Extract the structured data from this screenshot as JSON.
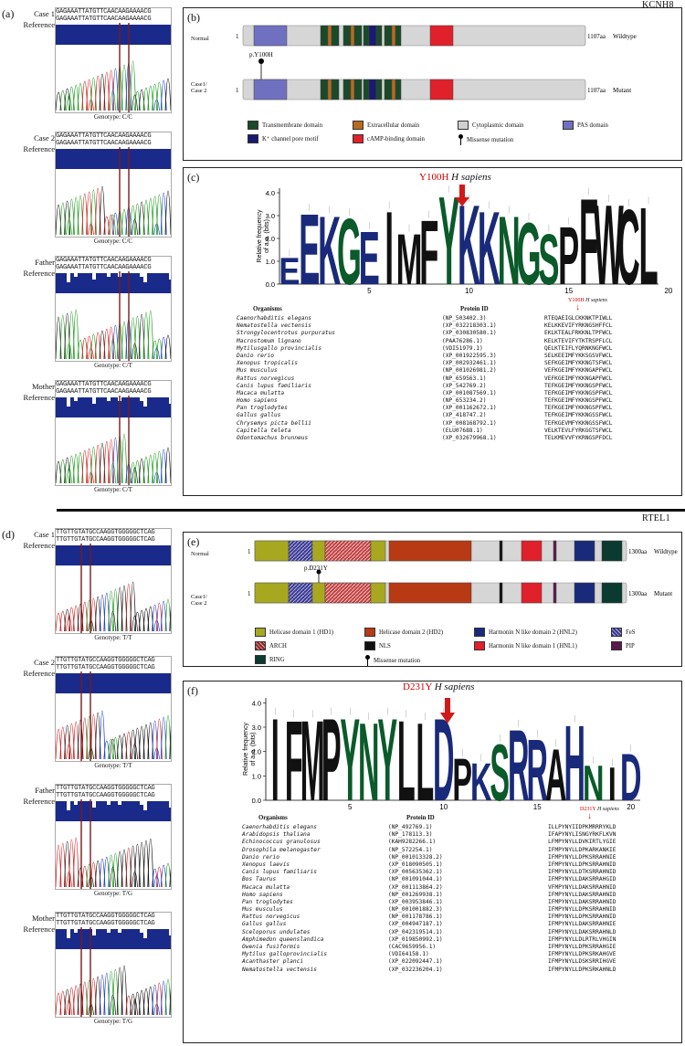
{
  "panels": {
    "a": "(a)",
    "b": "(b)",
    "c": "(c)",
    "d": "(d)",
    "e": "(e)",
    "f": "(f)"
  },
  "genes": {
    "top": "KCNH8",
    "bottom": "RTEL1"
  },
  "labels": {
    "reference": "Reference",
    "normal": "Normal",
    "case12": "Case1/\nCase 2",
    "wildtype": "Wildtype",
    "mutant": "Mutant",
    "start": "1",
    "organisms": "Organisms",
    "protein_id": "Protein ID",
    "ylabel": "Relative frequency\nof a.a. (bits)"
  },
  "kcnh8": {
    "length": "1107aa",
    "mutation": "p.Y100H",
    "logo_title_mut": "Y100H",
    "logo_title_sp": "H sapiens",
    "chroms": [
      {
        "case": "Case 1",
        "seq1": "GAGAAATTATGTTCAACAAGAAAACG",
        "seq2": "GAGAAATTATGTTCAACAAGAAAACG",
        "genotype": "Genotype: C/C"
      },
      {
        "case": "Case 2",
        "seq1": "GAGAAATTATGTTCAACAAGAAAACG",
        "seq2": "GAGAAATTATGTTCAACAAGAAAACG",
        "genotype": "Genotype: C/C"
      },
      {
        "case": "Father",
        "seq1": "GAGAAATTATGTTCAACAAGAAAACG",
        "seq2": "GAGAAATTATGTTCAACAAGAAAACG",
        "genotype": "Genotype: C/T"
      },
      {
        "case": "Mother",
        "seq1": "GAGAAATTATGTTCAACAAGAAAACG",
        "seq2": "GAGAAATTATGTTCAACAAGAAAACG",
        "genotype": "Genotype: C/T"
      }
    ],
    "legend": [
      {
        "label": "Transmembrane domain",
        "color": "#1a4a2a"
      },
      {
        "label": "Extracellular domain",
        "color": "#b86a20"
      },
      {
        "label": "Cytoplasmic domain",
        "color": "#d0d0d0"
      },
      {
        "label": "PAS domain",
        "color": "#7070c0"
      },
      {
        "label": "K⁺ channel pore motif",
        "color": "#1a1a70"
      },
      {
        "label": "cAMP-binding domain",
        "color": "#e0202a"
      },
      {
        "label": "Missense mutation",
        "color": "#000000"
      }
    ],
    "logo_ticks": [
      "5",
      "10",
      "15",
      "20"
    ],
    "logo_yticks": [
      "0.0",
      "1.0",
      "2.0",
      "3.0",
      "4.0"
    ],
    "logo_letters": "EEKGEIMFYKKNGSPFWCL",
    "alignment": [
      [
        "Caenorhabditis elegans",
        "(NP_503402.3)",
        "RTEQAEIGLCKKNKTPIWLL"
      ],
      [
        "Nematostella vectensis",
        "(XP_032218303.1)",
        "KELKKEVIFYRKNGSHFFCL"
      ],
      [
        "Strongylocentrotus purpuratus",
        "(XP_030830580.1)",
        "EKLKTEALFRKKNLTPFWCL"
      ],
      [
        "Macrostomum lignano",
        "(PAA76286.1)",
        "KELKTEVIFYTKTRSPFLCL"
      ],
      [
        "Mytilusgallo provincialis",
        "(VDI51979.1)",
        "QELKTEIFLYQRNKNGFWCL"
      ],
      [
        "Danio rerio",
        "(XP_001922595.3)",
        "SELKEEIMFYKKSGSVFWCL"
      ],
      [
        "Xenopus tropicalis",
        "(XP_002932461.1)",
        "SEFKGEIMFYKKNGTSFWCL"
      ],
      [
        "Mus musculus",
        "(NP_001026981.2)",
        "VEFKGEIMFYKKNGAPFWCL"
      ],
      [
        "Rattus norvegicus",
        "(NP_659563.1)",
        "VEFKGEIMFYKKNGAPFWCL"
      ],
      [
        "Canis lupus familiaris",
        "(XP_542769.2)",
        "TEFKGEIMFYKKNGSPFWCL"
      ],
      [
        "Macaca mulatta",
        "(XP_001087569.1)",
        "TEFKGEIMFYKKNGSPFWCL"
      ],
      [
        "Homo sapiens",
        "(NP_653234.2)",
        "TEFKGEIMFYKKNGSPFWCL"
      ],
      [
        "Pan troglodytes",
        "(XP_001162672.1)",
        "TEFKGEIMFYKKNGSPFWCL"
      ],
      [
        "Gallus gallus",
        "(XP_418747.2)",
        "TEFKGEIMFYKKNGSSFWCL"
      ],
      [
        "Chrysemys picta bellii",
        "(XP_008168792.1)",
        "TEFKGEVMFYKKNGSSFWCL"
      ],
      [
        "Capitella teleta",
        "(ELU07688.1)",
        "VELKTEVLFYRKGGTSFWCL"
      ],
      [
        "Odontomachus brunneus",
        "(XP_032679968.1)",
        "TELKMEVVFYKRNGSPFDCL"
      ]
    ]
  },
  "rtel1": {
    "length": "1300aa",
    "mutation": "p.D231Y",
    "logo_title_mut": "D231Y",
    "logo_title_sp": "H sapiens",
    "chroms": [
      {
        "case": "Case 1",
        "seq1": "TTGTTGTATGCCAAGGTGGGGGCTCAG",
        "seq2": "TTGTTGTATGCCAAGGTGGGGGCTCAG",
        "genotype": "Genotype: T/T"
      },
      {
        "case": "Case 2",
        "seq1": "TTGTTGTATGCCAAGGTGGGGGCTCAG",
        "seq2": "TTGTTGTATGCCAAGGTGGGGGCTCAG",
        "genotype": "Genotype: T/T"
      },
      {
        "case": "Father",
        "seq1": "TTGTTGTATGCCAAGGTGGGGGCTCAG",
        "seq2": "TTGTTGTATGCCAAGGTGGGGGCTCAG",
        "genotype": "Genotype: T/G"
      },
      {
        "case": "Mother",
        "seq1": "TTGTTGTATGCCAAGGTGGGGGCTCAG",
        "seq2": "TTGTTGTATGCCAAGGTGGGGGCTCAG",
        "genotype": "Genotype: T/G"
      }
    ],
    "legend": [
      {
        "label": "Helicase domain 1 (HD1)",
        "color": "#a8a820"
      },
      {
        "label": "Helicase domain 2 (HD2)",
        "color": "#b83a14"
      },
      {
        "label": "Harmonin N like domain 2 (HNL2)",
        "color": "#1a2a7a"
      },
      {
        "label": "FeS",
        "color": "#5050a0"
      },
      {
        "label": "ARCH",
        "color": "#8a2a2a"
      },
      {
        "label": "NLS",
        "color": "#111111"
      },
      {
        "label": "Harmonin N like domain 1 (HNL1)",
        "color": "#e0202a"
      },
      {
        "label": "PIP",
        "color": "#5a1a4a"
      },
      {
        "label": "RING",
        "color": "#0a3a30"
      },
      {
        "label": "Missense mutation",
        "color": "#000000"
      }
    ],
    "logo_ticks": [
      "5",
      "10",
      "15",
      "20"
    ],
    "logo_yticks": [
      "0.0",
      "1.0",
      "2.0",
      "3.0",
      "4.0"
    ],
    "logo_letters": "IFMPYNYLLDPKSRRAHNID",
    "alignment": [
      [
        "Caenorhabditis elegans",
        "(NP_492769.1)",
        "ILLPYNYIIDPKMRRRYKLD"
      ],
      [
        "Arabidopsis thaliana",
        "(NP_178113.3)",
        "IFAPYNYLISNGYRKFLKVN"
      ],
      [
        "Echinococcus granulosus",
        "(KAH9282266.1)",
        "LFMPYNYLLDVKIRTLYGIE"
      ],
      [
        "Drosophila melanogaster",
        "(NP_572254.1)",
        "IFMPYNYLLDPKARKANKIE"
      ],
      [
        "Danio rerio",
        "(NP_001013328.2)",
        "IFMPYNYLLDPKSRRAHNIE"
      ],
      [
        "Xenopus laevis",
        "(XP_018090505.1)",
        "IFMPYNYLLDPKSRRAHNID"
      ],
      [
        "Canis lupus familiaris",
        "(XP_005635362.1)",
        "IFMPYNYLLDTKSRRAHNID"
      ],
      [
        "Bos Taurus",
        "(NP_001091044.1)",
        "IFMPYNYLLDAKSRRAHGID"
      ],
      [
        "Macaca mulatta",
        "(XP_001113864.2)",
        "VFMPYNYLLDAKSRRAHNID"
      ],
      [
        "Homo sapiens",
        "(NP_001269938.1)",
        "IFMPYNYLLDAKSRRAHNID"
      ],
      [
        "Pan troglodytes",
        "(XP_003953846.1)",
        "IFMPYNYLLDAKSRRAHNID"
      ],
      [
        "Mus musculus",
        "(NP_001001882.3)",
        "IFMPYNYLLDPKSRRAHNID"
      ],
      [
        "Rattus norvegicus",
        "(NP_001178786.1)",
        "IFMPYNYLLDPKSRRAHNID"
      ],
      [
        "Gallus gallus",
        "(XP_004947187.1)",
        "IFMPYNYLLDAKSRRAHNIE"
      ],
      [
        "Sceloporus undulates",
        "(XP_042319514.1)",
        "IFMPYNYLLDAKSRRAHNLD"
      ],
      [
        "Amphimedon queenslandica",
        "(XP_019850992.1)",
        "IFMPYNYLLDLRTRLVHGIN"
      ],
      [
        "Owenia fusiformis",
        "(CAC9659956.1)",
        "IFMPYNYLLDPKSRRAHGIE"
      ],
      [
        "Mytilus galloprovincialis",
        "(VDI64158.1)",
        "IFMPYNYLLDPKSRKAHGVE"
      ],
      [
        "Acanthaster planci",
        "(XP_022092447.1)",
        "IFMPYNYLLDSKSRRIHGVE"
      ],
      [
        "Nematostella vectensis",
        "(XP_032236204.1)",
        "IFMPYNYLLDPKSRKAHNLD"
      ]
    ]
  }
}
